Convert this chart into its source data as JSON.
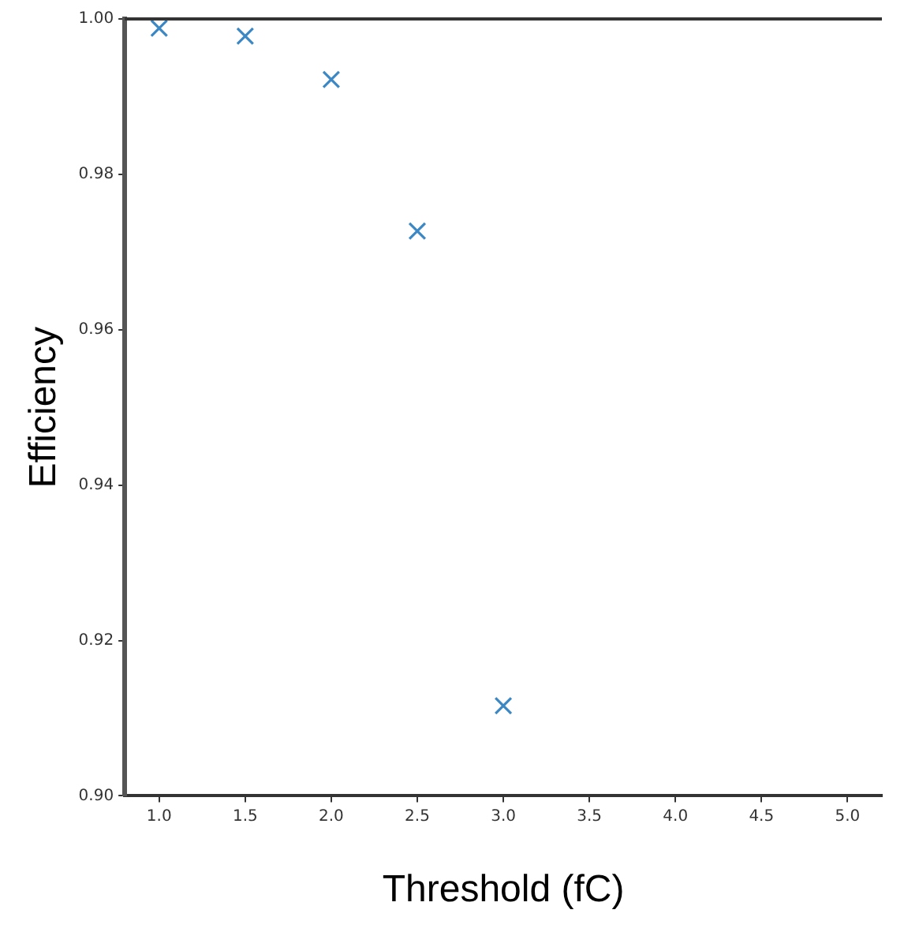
{
  "chart_data": {
    "type": "scatter",
    "xlabel": "Threshold (fC)",
    "ylabel": "Efficiency",
    "x": [
      1.0,
      1.5,
      2.0,
      2.5,
      3.0
    ],
    "series": [
      {
        "color": "#3c88c4",
        "values": [
          0.9988,
          0.9978,
          0.9922,
          0.9727,
          0.9116
        ]
      }
    ],
    "marker": "cross",
    "grid": false,
    "legend": false,
    "xlim": [
      0.8,
      5.2
    ],
    "xticks": [
      {
        "value": 1,
        "label": "1.0"
      },
      {
        "value": 1.5,
        "label": "1.5"
      },
      {
        "value": 2,
        "label": "2.0"
      },
      {
        "value": 2.5,
        "label": "2.5"
      },
      {
        "value": 3,
        "label": "3.0"
      },
      {
        "value": 3.5,
        "label": "3.5"
      },
      {
        "value": 4,
        "label": "4.0"
      },
      {
        "value": 4.5,
        "label": "4.5"
      },
      {
        "value": 5,
        "label": "5.0"
      }
    ],
    "ylim": [
      0.9,
      1.0
    ],
    "yticks": [
      {
        "value": 0.9,
        "label": "0.90"
      },
      {
        "value": 0.92,
        "label": "0.92"
      },
      {
        "value": 0.94,
        "label": "0.94"
      },
      {
        "value": 0.96,
        "label": "0.96"
      },
      {
        "value": 0.98,
        "label": "0.98"
      },
      {
        "value": 1.0,
        "label": "1.00"
      }
    ]
  }
}
